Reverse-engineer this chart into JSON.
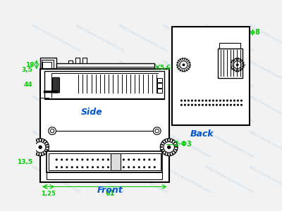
{
  "bg_color": "#f2f2f2",
  "line_color": "#000000",
  "dim_color": "#00cc00",
  "label_color": "#0055cc",
  "watermark_color": "#b8d4ec",
  "side_view": {
    "label": "Side",
    "dim_18": "18",
    "dim_56": "5,6"
  },
  "front_view": {
    "label": "Front",
    "dim_61": "61",
    "dim_44": "44",
    "dim_35": "3,5",
    "dim_135": "13,5",
    "dim_125": "1,25",
    "dim_2phi3": "2-Φ3"
  },
  "back_view": {
    "label": "Back",
    "dim_8": "8"
  }
}
